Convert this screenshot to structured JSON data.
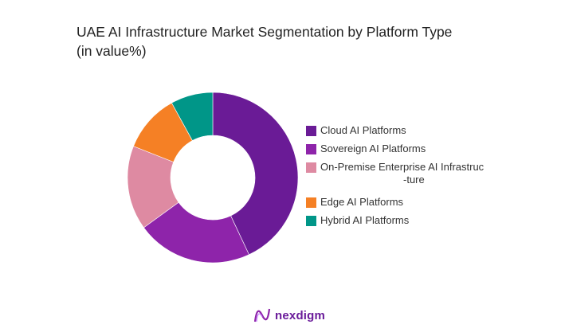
{
  "chart_data": {
    "type": "pie",
    "donut": true,
    "title_line1": "UAE AI Infrastructure Market Segmentation by Platform Type",
    "title_line2": "(in value%)",
    "categories": [
      "Cloud AI Platforms",
      "Sovereign AI Platforms",
      "On-Premise Enterprise AI Infrastructure",
      "Edge AI Platforms",
      "Hybrid AI Platforms"
    ],
    "legend_labels": [
      "Cloud AI Platforms",
      "Sovereign AI Platforms",
      "On-Premise Enterprise AI Infrastruc",
      "Edge AI Platforms",
      "Hybrid AI Platforms"
    ],
    "legend_wrap": "-ture",
    "values": [
      43,
      22,
      16,
      11,
      8
    ],
    "colors": [
      "#6a1b96",
      "#8e24aa",
      "#de8aa2",
      "#f58025",
      "#009688"
    ],
    "legend_position": "right"
  },
  "brand": {
    "name": "nexdigm",
    "color": "#6a1b9a"
  }
}
